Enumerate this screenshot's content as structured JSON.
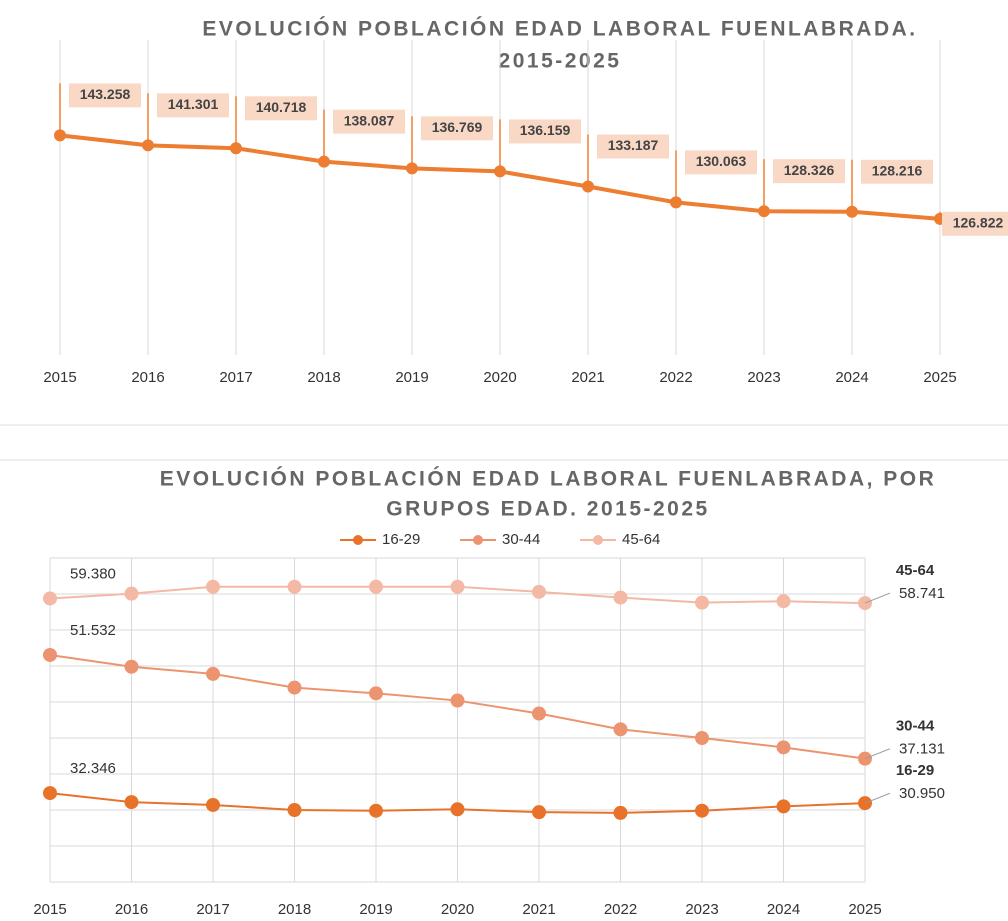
{
  "chart_data": [
    {
      "type": "line",
      "title": [
        "EVOLUCIÓN POBLACIÓN EDAD LABORAL FUENLABRADA.",
        "2015-2025"
      ],
      "categories": [
        "2015",
        "2016",
        "2017",
        "2018",
        "2019",
        "2020",
        "2021",
        "2022",
        "2023",
        "2024",
        "2025"
      ],
      "series": [
        {
          "name": null,
          "color": "#ed7d31",
          "values": [
            143258,
            141301,
            140718,
            138087,
            136769,
            136159,
            133187,
            130063,
            128326,
            128216,
            126822
          ],
          "value_labels": [
            "143.258",
            "141.301",
            "140.718",
            "138.087",
            "136.769",
            "136.159",
            "133.187",
            "130.063",
            "128.326",
            "128.216",
            "126.822"
          ]
        }
      ],
      "ylim": [
        100000,
        165000
      ]
    },
    {
      "type": "line",
      "title": [
        "EVOLUCIÓN POBLACIÓN EDAD LABORAL FUENLABRADA, POR",
        "GRUPOS EDAD. 2015-2025"
      ],
      "categories": [
        "2015",
        "2016",
        "2017",
        "2018",
        "2019",
        "2020",
        "2021",
        "2022",
        "2023",
        "2024",
        "2025"
      ],
      "series": [
        {
          "name": "16-29",
          "color": "#e8722a",
          "values": [
            32346,
            31100,
            30700,
            30000,
            29900,
            30100,
            29700,
            29600,
            29900,
            30500,
            30950
          ],
          "value_labels": [
            "32.346",
            null,
            null,
            null,
            null,
            null,
            null,
            null,
            null,
            null,
            "30.950"
          ]
        },
        {
          "name": "30-44",
          "color": "#ec9470",
          "values": [
            51532,
            49900,
            48900,
            47000,
            46200,
            45200,
            43400,
            41200,
            40000,
            38700,
            37131
          ],
          "value_labels": [
            "51.532",
            null,
            null,
            null,
            null,
            null,
            null,
            null,
            null,
            null,
            "37.131"
          ]
        },
        {
          "name": "45-64",
          "color": "#f3b9a5",
          "values": [
            59380,
            60050,
            61000,
            61000,
            61000,
            61000,
            60300,
            59500,
            58800,
            59000,
            58741
          ],
          "value_labels": [
            "59.380",
            null,
            null,
            null,
            null,
            null,
            null,
            null,
            null,
            null,
            "58.741"
          ]
        }
      ],
      "ylim": [
        20000,
        65000
      ],
      "yticks": [
        20000,
        25000,
        30000,
        35000,
        40000,
        45000,
        50000,
        55000,
        60000,
        65000
      ],
      "grid": true,
      "legend": "top"
    }
  ]
}
